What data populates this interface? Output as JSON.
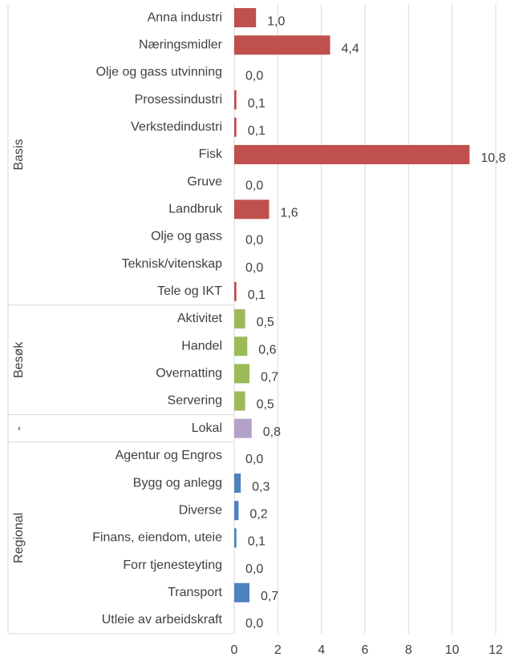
{
  "chart_data": {
    "type": "bar",
    "orientation": "horizontal",
    "groups": [
      {
        "label": "Basis",
        "color": "#c0504d",
        "categories": [
          "Anna industri",
          "Næringsmidler",
          "Olje og gass utvinning",
          "Prosessindustri",
          "Verkstedindustri",
          "Fisk",
          "Gruve",
          "Landbruk",
          "Olje og gass",
          "Teknisk/vitenskap",
          "Tele og IKT"
        ],
        "values": [
          1.0,
          4.4,
          0.0,
          0.1,
          0.1,
          10.8,
          0.0,
          1.6,
          0.0,
          0.0,
          0.1
        ],
        "value_labels": [
          "1,0",
          "4,4",
          "0,0",
          "0,1",
          "0,1",
          "10,8",
          "0,0",
          "1,6",
          "0,0",
          "0,0",
          "0,1"
        ]
      },
      {
        "label": "Besøk",
        "color": "#9bbb59",
        "categories": [
          "Aktivitet",
          "Handel",
          "Overnatting",
          "Servering"
        ],
        "values": [
          0.5,
          0.6,
          0.7,
          0.5
        ],
        "value_labels": [
          "0,5",
          "0,6",
          "0,7",
          "0,5"
        ]
      },
      {
        "label": "-",
        "color": "#b3a2c7",
        "categories": [
          "Lokal"
        ],
        "values": [
          0.8
        ],
        "value_labels": [
          "0,8"
        ]
      },
      {
        "label": "Regional",
        "color": "#4f81bd",
        "categories": [
          "Agentur og Engros",
          "Bygg og anlegg",
          "Diverse",
          "Finans, eiendom, uteie",
          "Forr tjenesteyting",
          "Transport",
          "Utleie av arbeidskraft"
        ],
        "values": [
          0.0,
          0.3,
          0.2,
          0.1,
          0.0,
          0.7,
          0.0
        ],
        "value_labels": [
          "0,0",
          "0,3",
          "0,2",
          "0,1",
          "0,0",
          "0,7",
          "0,0"
        ]
      }
    ],
    "xlim": [
      0,
      12
    ],
    "xticks": [
      0,
      2,
      4,
      6,
      8,
      10,
      12
    ],
    "grid": true
  }
}
